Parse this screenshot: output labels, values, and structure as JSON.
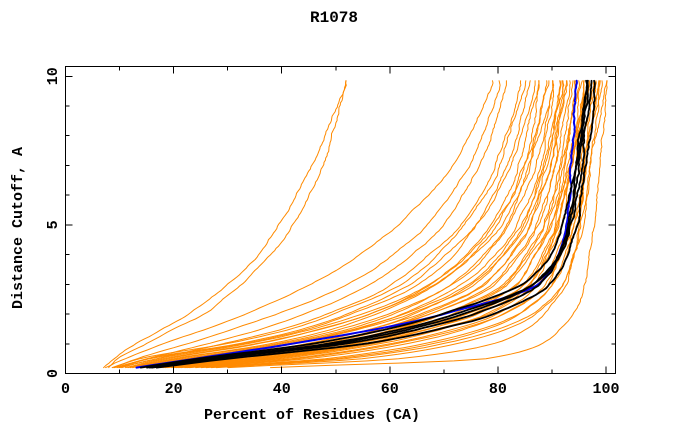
{
  "title": "R1078",
  "colors": {
    "background": "#ffffff",
    "axis": "#000000",
    "orange": "#ff8a00",
    "blue": "#0000ee",
    "black": "#000000"
  },
  "chart_data": {
    "type": "line",
    "title": "R1078",
    "xlabel": "Percent of Residues (CA)",
    "ylabel": "Distance Cutoff, A",
    "xlim": [
      0,
      101.7
    ],
    "ylim": [
      0,
      10.33
    ],
    "grid": false,
    "legend": "none",
    "x_major_ticks": [
      0,
      20,
      40,
      60,
      80,
      100
    ],
    "x_minor_ticks": [
      10,
      30,
      50,
      70,
      90
    ],
    "y_major_ticks": [
      0,
      5,
      10
    ],
    "y_minor_ticks": [
      1,
      2,
      3,
      4,
      6,
      7,
      8,
      9
    ],
    "cutoffs": [
      0.2,
      0.5,
      1,
      1.5,
      2,
      3,
      4,
      5,
      7,
      9.7
    ],
    "series": [
      {
        "name": "orange-01",
        "color": "orange",
        "percent_at_cutoff": [
          7,
          9,
          13,
          18,
          23,
          30,
          35.5,
          39.5,
          45,
          51.5
        ]
      },
      {
        "name": "orange-02",
        "color": "orange",
        "percent_at_cutoff": [
          8,
          10,
          15,
          20,
          25.5,
          32,
          37.5,
          41.5,
          47,
          52
        ]
      },
      {
        "name": "orange-03",
        "color": "orange",
        "percent_at_cutoff": [
          7.5,
          11,
          18,
          26,
          33,
          45,
          54,
          61,
          71,
          78.5
        ]
      },
      {
        "name": "orange-04",
        "color": "orange",
        "percent_at_cutoff": [
          8.5,
          13,
          22,
          31,
          39,
          52,
          60,
          66.5,
          74.5,
          80.7
        ]
      },
      {
        "name": "orange-05",
        "color": "orange",
        "percent_at_cutoff": [
          9,
          15,
          26,
          36,
          44,
          56,
          64,
          70,
          77,
          82.3
        ]
      },
      {
        "name": "orange-06",
        "color": "orange",
        "percent_at_cutoff": [
          10,
          17,
          29,
          40,
          48,
          60,
          67,
          72.5,
          79,
          83.8
        ]
      },
      {
        "name": "orange-07",
        "color": "orange",
        "percent_at_cutoff": [
          9,
          14,
          30,
          42,
          50,
          62,
          69,
          74,
          80.5,
          85
        ]
      },
      {
        "name": "orange-08",
        "color": "orange",
        "percent_at_cutoff": [
          10,
          16,
          33,
          45,
          53,
          65,
          71.5,
          76,
          82,
          86
        ]
      },
      {
        "name": "orange-09",
        "color": "orange",
        "percent_at_cutoff": [
          11,
          18,
          35,
          47,
          56,
          67,
          73.5,
          78,
          83.5,
          87
        ]
      },
      {
        "name": "orange-10",
        "color": "orange",
        "percent_at_cutoff": [
          9.5,
          15,
          32,
          44,
          52,
          64,
          71,
          76.5,
          83,
          87.6
        ]
      },
      {
        "name": "orange-11",
        "color": "orange",
        "percent_at_cutoff": [
          12,
          20,
          38,
          50,
          58,
          69,
          75.5,
          80,
          85,
          88.2
        ]
      },
      {
        "name": "orange-12",
        "color": "orange",
        "percent_at_cutoff": [
          10.5,
          17,
          34,
          46,
          55,
          67,
          74,
          79,
          84.5,
          88.8
        ]
      },
      {
        "name": "orange-13",
        "color": "orange",
        "percent_at_cutoff": [
          13,
          22,
          40,
          52,
          60,
          71,
          77,
          81.5,
          86,
          89.3
        ]
      },
      {
        "name": "orange-14",
        "color": "orange",
        "percent_at_cutoff": [
          11.5,
          19,
          36,
          48,
          57,
          69,
          76,
          81,
          86.3,
          89.8
        ]
      },
      {
        "name": "orange-15",
        "color": "orange",
        "percent_at_cutoff": [
          14,
          24,
          42,
          54,
          62,
          73,
          79,
          83,
          87.3,
          90.3
        ]
      },
      {
        "name": "orange-16",
        "color": "orange",
        "percent_at_cutoff": [
          12.5,
          21,
          39,
          51,
          60,
          72,
          78,
          82.5,
          87,
          90.8
        ]
      },
      {
        "name": "orange-17",
        "color": "orange",
        "percent_at_cutoff": [
          15,
          26,
          44,
          56,
          64,
          75,
          80.5,
          84.5,
          88.5,
          91.2
        ]
      },
      {
        "name": "orange-18",
        "color": "orange",
        "percent_at_cutoff": [
          13.5,
          23,
          41,
          53,
          62,
          74,
          79.8,
          83.8,
          88,
          91.6
        ]
      },
      {
        "name": "orange-19",
        "color": "orange",
        "percent_at_cutoff": [
          16,
          28,
          46,
          58,
          66,
          77,
          82,
          85.8,
          89.5,
          92
        ]
      },
      {
        "name": "orange-20",
        "color": "orange",
        "percent_at_cutoff": [
          14.5,
          25,
          43,
          55,
          64,
          76,
          81.2,
          85,
          89,
          92.4
        ]
      },
      {
        "name": "orange-21",
        "color": "orange",
        "percent_at_cutoff": [
          17,
          30,
          48,
          60,
          68,
          79,
          83.5,
          87,
          90.5,
          92.8
        ]
      },
      {
        "name": "orange-22",
        "color": "orange",
        "percent_at_cutoff": [
          15.5,
          27,
          45,
          57,
          66,
          78,
          83,
          86.5,
          90,
          93.2
        ]
      },
      {
        "name": "orange-23",
        "color": "orange",
        "percent_at_cutoff": [
          18,
          32,
          50,
          62,
          70,
          81,
          85,
          88.3,
          91.3,
          93.6
        ]
      },
      {
        "name": "orange-24",
        "color": "orange",
        "percent_at_cutoff": [
          16.5,
          29,
          47,
          59,
          68,
          80,
          84.5,
          87.8,
          91,
          94
        ]
      },
      {
        "name": "orange-25",
        "color": "orange",
        "percent_at_cutoff": [
          19,
          34,
          52,
          64,
          72,
          82.5,
          86.3,
          89.3,
          92.2,
          94.4
        ]
      },
      {
        "name": "orange-26",
        "color": "orange",
        "percent_at_cutoff": [
          17.5,
          31,
          49,
          61,
          70,
          81.5,
          85.7,
          88.8,
          91.8,
          94.8
        ]
      },
      {
        "name": "orange-27",
        "color": "orange",
        "percent_at_cutoff": [
          20,
          36,
          54,
          66,
          74,
          84,
          87.5,
          90.2,
          92.8,
          95.1
        ]
      },
      {
        "name": "orange-28",
        "color": "orange",
        "percent_at_cutoff": [
          18.5,
          33,
          51,
          63,
          72,
          83,
          86.8,
          89.8,
          92.5,
          95.5
        ]
      },
      {
        "name": "orange-29",
        "color": "orange",
        "percent_at_cutoff": [
          21,
          38,
          56,
          68,
          76,
          85.5,
          88.6,
          91,
          93.5,
          95.8
        ]
      },
      {
        "name": "orange-30",
        "color": "orange",
        "percent_at_cutoff": [
          19.5,
          35,
          53,
          65,
          74,
          84.5,
          88,
          90.6,
          93.2,
          96.1
        ]
      },
      {
        "name": "orange-31",
        "color": "orange",
        "percent_at_cutoff": [
          22,
          40,
          58,
          70,
          78,
          86.5,
          89.5,
          91.8,
          94,
          96.5
        ]
      },
      {
        "name": "orange-32",
        "color": "orange",
        "percent_at_cutoff": [
          20.5,
          37,
          55,
          67,
          76,
          85.8,
          89,
          91.4,
          93.8,
          96.8
        ]
      },
      {
        "name": "orange-33",
        "color": "orange",
        "percent_at_cutoff": [
          23,
          42,
          60,
          72,
          80,
          87.5,
          90.3,
          92.5,
          94.5,
          97.1
        ]
      },
      {
        "name": "orange-34",
        "color": "orange",
        "percent_at_cutoff": [
          21.5,
          39,
          57,
          69,
          78,
          86.8,
          89.8,
          92.2,
          94.3,
          97.4
        ]
      },
      {
        "name": "orange-35",
        "color": "orange",
        "percent_at_cutoff": [
          24,
          45,
          63,
          74,
          81,
          88.3,
          91,
          93,
          95,
          97.7
        ]
      },
      {
        "name": "orange-36",
        "color": "orange",
        "percent_at_cutoff": [
          26,
          50,
          68,
          78,
          84,
          90,
          92.3,
          94,
          95.7,
          98
        ]
      },
      {
        "name": "orange-37",
        "color": "orange",
        "percent_at_cutoff": [
          22.5,
          43,
          61,
          73,
          81,
          88.8,
          91.5,
          93.5,
          95.4,
          98.3
        ]
      },
      {
        "name": "orange-38",
        "color": "orange",
        "percent_at_cutoff": [
          28,
          55,
          72,
          81,
          86.5,
          91.5,
          93.4,
          94.9,
          96.4,
          98.6
        ]
      },
      {
        "name": "orange-39",
        "color": "orange",
        "percent_at_cutoff": [
          25,
          48,
          66,
          77,
          83.5,
          90,
          92.5,
          94.3,
          96,
          99
        ]
      },
      {
        "name": "orange-40",
        "color": "orange",
        "percent_at_cutoff": [
          30,
          62,
          79,
          85.5,
          89,
          93,
          94.5,
          95.7,
          97,
          99.3
        ]
      },
      {
        "name": "orange-41",
        "color": "orange",
        "percent_at_cutoff": [
          27,
          52,
          70,
          80,
          86,
          91.8,
          93.8,
          95.2,
          96.7,
          99.6
        ]
      },
      {
        "name": "orange-42",
        "color": "orange",
        "percent_at_cutoff": [
          38,
          78,
          88,
          91.5,
          93.5,
          95.5,
          96.3,
          97.2,
          98.2,
          99.8
        ]
      },
      {
        "name": "blue-01",
        "color": "blue",
        "percent_at_cutoff": [
          13,
          24,
          42,
          58,
          70,
          87,
          90.5,
          92,
          93.2,
          94
        ]
      },
      {
        "name": "black-01",
        "color": "black",
        "percent_at_cutoff": [
          15,
          26,
          48,
          62,
          72,
          86,
          91,
          93,
          95,
          96.6
        ]
      },
      {
        "name": "black-02",
        "color": "black",
        "percent_at_cutoff": [
          16,
          28,
          52,
          66,
          76,
          88,
          92,
          93.8,
          95.6,
          97.2
        ]
      },
      {
        "name": "black-03",
        "color": "black",
        "percent_at_cutoff": [
          14,
          25,
          46,
          60,
          70,
          85,
          90.5,
          92.6,
          94.7,
          96.3
        ]
      },
      {
        "name": "black-04",
        "color": "black",
        "percent_at_cutoff": [
          17,
          30,
          55,
          69,
          79,
          89,
          92.5,
          94.2,
          95.9,
          97.5
        ]
      },
      {
        "name": "black-05",
        "color": "black",
        "percent_at_cutoff": [
          15.5,
          27,
          50,
          64,
          74,
          87,
          91.6,
          93.4,
          95.2,
          96.9
        ]
      }
    ]
  }
}
